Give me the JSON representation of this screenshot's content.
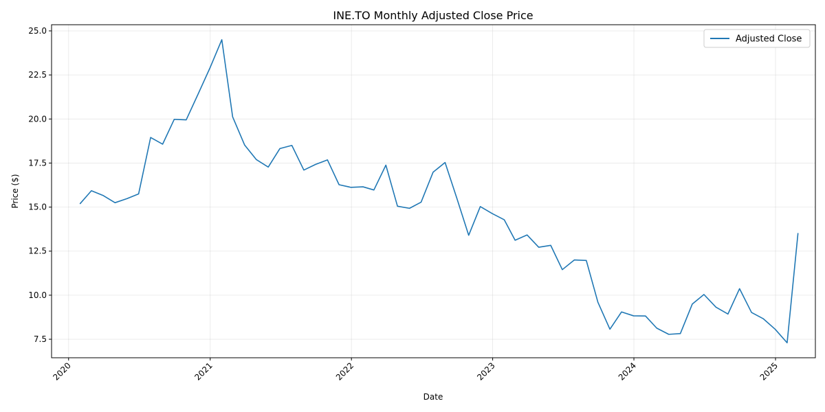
{
  "chart_data": {
    "type": "line",
    "title": "INE.TO Monthly Adjusted Close Price",
    "xlabel": "Date",
    "ylabel": "Price ($)",
    "grid": true,
    "legend_position": "top-right",
    "x_range": [
      "2019-11-18",
      "2025-04-14"
    ],
    "ylim": [
      6.45,
      25.35
    ],
    "y_ticks": [
      "7.5",
      "10.0",
      "12.5",
      "15.0",
      "17.5",
      "20.0",
      "22.5",
      "25.0"
    ],
    "x_ticks": [
      {
        "date": "2020-01-01",
        "label": "2020"
      },
      {
        "date": "2021-01-01",
        "label": "2021"
      },
      {
        "date": "2022-01-01",
        "label": "2022"
      },
      {
        "date": "2023-01-01",
        "label": "2023"
      },
      {
        "date": "2024-01-01",
        "label": "2024"
      },
      {
        "date": "2025-01-01",
        "label": "2025"
      }
    ],
    "series": [
      {
        "name": "Adjusted Close",
        "color": "#1f77b4",
        "x": [
          "2020-01-31",
          "2020-02-29",
          "2020-03-31",
          "2020-04-30",
          "2020-05-31",
          "2020-06-30",
          "2020-07-31",
          "2020-08-31",
          "2020-09-30",
          "2020-10-31",
          "2020-11-30",
          "2020-12-31",
          "2021-01-31",
          "2021-02-28",
          "2021-03-31",
          "2021-04-30",
          "2021-05-31",
          "2021-06-30",
          "2021-07-31",
          "2021-08-31",
          "2021-09-30",
          "2021-10-31",
          "2021-11-30",
          "2021-12-31",
          "2022-01-31",
          "2022-02-28",
          "2022-03-31",
          "2022-04-30",
          "2022-05-31",
          "2022-06-30",
          "2022-07-31",
          "2022-08-31",
          "2022-09-30",
          "2022-10-31",
          "2022-11-30",
          "2022-12-31",
          "2023-01-31",
          "2023-02-28",
          "2023-03-31",
          "2023-04-30",
          "2023-05-31",
          "2023-06-30",
          "2023-07-31",
          "2023-08-31",
          "2023-09-30",
          "2023-10-31",
          "2023-11-30",
          "2023-12-31",
          "2024-01-31",
          "2024-02-29",
          "2024-03-31",
          "2024-04-30",
          "2024-05-31",
          "2024-06-30",
          "2024-07-31",
          "2024-08-31",
          "2024-09-30",
          "2024-10-31",
          "2024-11-30",
          "2024-12-31",
          "2025-01-31",
          "2025-02-28"
        ],
        "values": [
          15.2,
          15.93,
          15.65,
          15.25,
          15.48,
          15.75,
          18.95,
          18.57,
          19.98,
          19.95,
          21.38,
          22.88,
          24.5,
          20.12,
          18.52,
          17.7,
          17.27,
          18.32,
          18.5,
          17.1,
          17.42,
          17.68,
          16.27,
          16.12,
          16.15,
          15.97,
          17.38,
          15.05,
          14.93,
          15.28,
          16.98,
          17.53,
          15.53,
          13.4,
          15.03,
          14.63,
          14.28,
          13.12,
          13.42,
          12.72,
          12.83,
          11.45,
          12.0,
          11.97,
          9.6,
          8.07,
          9.05,
          8.83,
          8.82,
          8.13,
          7.78,
          7.82,
          9.5,
          10.04,
          9.32,
          8.93,
          10.37,
          9.02,
          8.67,
          8.07,
          7.3,
          13.5
        ]
      }
    ]
  }
}
